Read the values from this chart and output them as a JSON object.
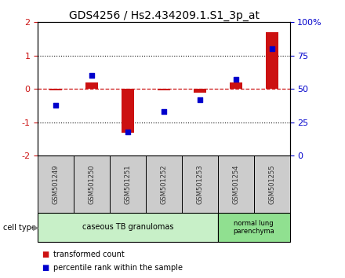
{
  "title": "GDS4256 / Hs2.434209.1.S1_3p_at",
  "samples": [
    "GSM501249",
    "GSM501250",
    "GSM501251",
    "GSM501252",
    "GSM501253",
    "GSM501254",
    "GSM501255"
  ],
  "transformed_count": [
    -0.05,
    0.2,
    -1.3,
    -0.05,
    -0.1,
    0.2,
    1.7
  ],
  "percentile_rank": [
    38,
    60,
    18,
    33,
    42,
    57,
    80
  ],
  "ylim": [
    -2,
    2
  ],
  "yticks_left": [
    -2,
    -1,
    0,
    1,
    2
  ],
  "yticks_right": [
    0,
    25,
    50,
    75,
    100
  ],
  "bar_color": "#cc1111",
  "scatter_color": "#0000cc",
  "hline_color": "#cc1111",
  "dotted_line_color": "#111111",
  "n_group1": 5,
  "n_group2": 2,
  "group1_label": "caseous TB granulomas",
  "group2_label": "normal lung\nparenchyma",
  "group1_bg": "#c8f0c8",
  "group2_bg": "#90e090",
  "sample_bg": "#cccccc",
  "cell_type_label": "cell type",
  "legend_bar_label": "transformed count",
  "legend_scatter_label": "percentile rank within the sample",
  "title_fontsize": 10,
  "axis_fontsize": 8,
  "sample_fontsize": 6,
  "celltype_fontsize": 7,
  "legend_fontsize": 7
}
